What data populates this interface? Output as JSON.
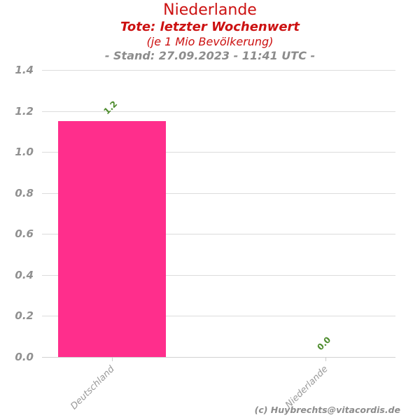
{
  "header": {
    "title": "Niederlande",
    "subtitle": "Tote: letzter Wochenwert",
    "subtitle2": "(je 1 Mio Bevölkerung)",
    "stand": "- Stand: 27.09.2023 - 11:41 UTC -"
  },
  "credit": "(c) Huybrechts@vitacordis.de",
  "chart_data": {
    "type": "bar",
    "title": "Niederlande",
    "subtitle": "Tote: letzter Wochenwert (je 1 Mio Bevölkerung)",
    "stand": "- Stand: 27.09.2023 - 11:41 UTC -",
    "categories": [
      "Deutschland",
      "Niederlande"
    ],
    "values": [
      1.15,
      0.0
    ],
    "value_labels": [
      "1.2",
      "0.0"
    ],
    "xlabel": "",
    "ylabel": "",
    "ylim": [
      0.0,
      1.4
    ],
    "yticks": [
      0.0,
      0.2,
      0.4,
      0.6,
      0.8,
      1.0,
      1.2,
      1.4
    ],
    "grid": true,
    "legend": "none"
  },
  "colors": {
    "title_red": "#cc1111",
    "stand_gray": "#8c8c8c",
    "bar_pink": "#ff2e8c",
    "value_green": "#4e8c2e",
    "grid_gray": "#dcdcdc",
    "axis_gray": "#d2d2d2",
    "ylabel_gray": "#909090",
    "xlabel_gray": "#999999",
    "tick_gray": "#cccccc"
  }
}
